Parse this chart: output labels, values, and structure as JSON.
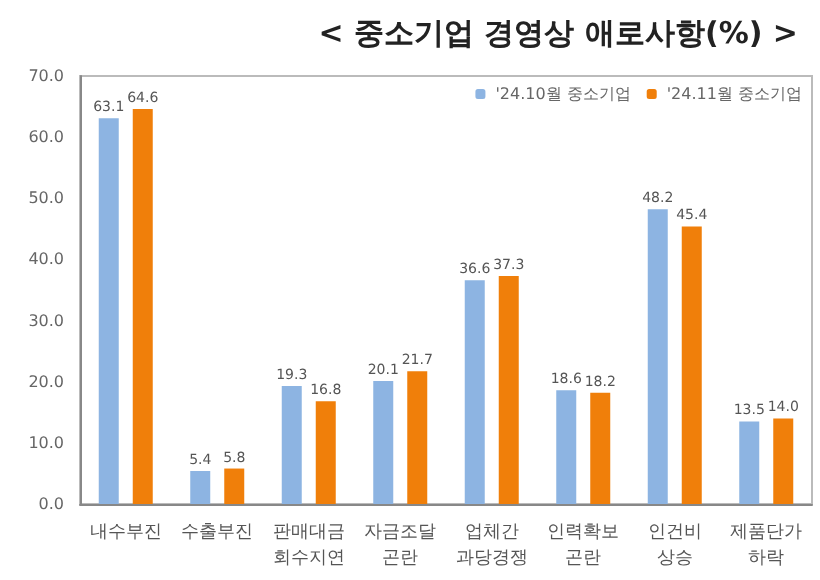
{
  "chart_data": {
    "type": "bar",
    "title": "< 중소기업 경영상 애로사항(%) >",
    "categories": [
      "내수부진",
      "수출부진",
      "판매대금\n회수지연",
      "자금조달\n곤란",
      "업체간\n과당경쟁",
      "인력확보\n곤란",
      "인건비\n상승",
      "제품단가\n하락"
    ],
    "series": [
      {
        "name": "'24.10월 중소기업",
        "color": "#8db4e2",
        "values": [
          63.1,
          5.4,
          19.3,
          20.1,
          36.6,
          18.6,
          48.2,
          13.5
        ],
        "value_labels": [
          "63.1",
          "5.4",
          "19.3",
          "20.1",
          "36.6",
          "18.6",
          "48.2",
          "13.5"
        ]
      },
      {
        "name": "'24.11월 중소기업",
        "color": "#f07f0a",
        "values": [
          64.6,
          5.8,
          16.8,
          21.7,
          37.3,
          18.2,
          45.4,
          14.0
        ],
        "value_labels": [
          "64.6",
          "5.8",
          "16.8",
          "21.7",
          "37.3",
          "18.2",
          "45.4",
          "14.0"
        ]
      }
    ],
    "ylim": [
      0,
      70
    ],
    "yticks": [
      {
        "value": 0,
        "label": "0.0"
      },
      {
        "value": 10,
        "label": "10.0"
      },
      {
        "value": 20,
        "label": "20.0"
      },
      {
        "value": 30,
        "label": "30.0"
      },
      {
        "value": 40,
        "label": "40.0"
      },
      {
        "value": 50,
        "label": "50.0"
      },
      {
        "value": 60,
        "label": "60.0"
      },
      {
        "value": 70,
        "label": "70.0"
      }
    ],
    "grid": false,
    "legend": "top right"
  }
}
